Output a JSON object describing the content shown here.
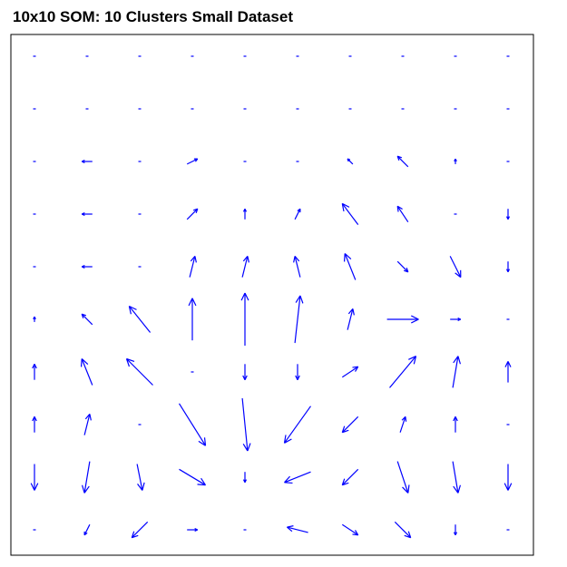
{
  "chart_data": {
    "type": "quiver",
    "title": "10x10 SOM: 10 Clusters Small Dataset",
    "grid_size": [
      10,
      10
    ],
    "xlim": [
      0,
      10
    ],
    "ylim": [
      0,
      10
    ],
    "xlabel": "",
    "ylabel": "",
    "axes_visible": false,
    "arrow_color": "#0000ff",
    "frame_color": "#000000",
    "vectors": [
      [
        [
          0,
          0
        ],
        [
          0,
          0
        ],
        [
          0,
          0
        ],
        [
          0,
          0
        ],
        [
          0,
          0
        ],
        [
          0,
          0
        ],
        [
          0,
          0
        ],
        [
          0,
          0
        ],
        [
          0,
          0
        ],
        [
          0,
          0
        ]
      ],
      [
        [
          0,
          0
        ],
        [
          0,
          0
        ],
        [
          0,
          0
        ],
        [
          0,
          0
        ],
        [
          0,
          0
        ],
        [
          0,
          0
        ],
        [
          0,
          0
        ],
        [
          0,
          0
        ],
        [
          0,
          0
        ],
        [
          0,
          0
        ]
      ],
      [
        [
          0,
          0
        ],
        [
          -0.2,
          0
        ],
        [
          0,
          0
        ],
        [
          0.2,
          0.1
        ],
        [
          0,
          0
        ],
        [
          0,
          0
        ],
        [
          -0.1,
          0.1
        ],
        [
          -0.2,
          0.2
        ],
        [
          0,
          0.1
        ],
        [
          0,
          0
        ]
      ],
      [
        [
          0,
          0
        ],
        [
          -0.2,
          0
        ],
        [
          0,
          0
        ],
        [
          0.2,
          0.2
        ],
        [
          0,
          0.2
        ],
        [
          0.1,
          0.2
        ],
        [
          -0.3,
          0.4
        ],
        [
          -0.2,
          0.3
        ],
        [
          0,
          0
        ],
        [
          0,
          -0.2
        ]
      ],
      [
        [
          0,
          0
        ],
        [
          -0.2,
          0
        ],
        [
          0,
          0
        ],
        [
          0.1,
          0.4
        ],
        [
          0.1,
          0.4
        ],
        [
          -0.1,
          0.4
        ],
        [
          -0.2,
          0.5
        ],
        [
          0.2,
          -0.2
        ],
        [
          0.2,
          -0.4
        ],
        [
          0,
          -0.2
        ]
      ],
      [
        [
          0,
          0.1
        ],
        [
          -0.2,
          0.2
        ],
        [
          -0.4,
          0.5
        ],
        [
          0,
          0.8
        ],
        [
          0,
          1.0
        ],
        [
          0.1,
          0.9
        ],
        [
          0.1,
          0.4
        ],
        [
          0.6,
          0
        ],
        [
          0.2,
          0
        ],
        [
          0,
          0
        ]
      ],
      [
        [
          0,
          0.3
        ],
        [
          -0.2,
          0.5
        ],
        [
          -0.5,
          0.5
        ],
        [
          0,
          0
        ],
        [
          0,
          -0.3
        ],
        [
          0,
          -0.3
        ],
        [
          0.3,
          0.2
        ],
        [
          0.5,
          0.6
        ],
        [
          0.1,
          0.6
        ],
        [
          0,
          0.4
        ]
      ],
      [
        [
          0,
          0.3
        ],
        [
          0.1,
          0.4
        ],
        [
          0,
          0
        ],
        [
          0.5,
          -0.8
        ],
        [
          0.1,
          -1.0
        ],
        [
          -0.5,
          -0.7
        ],
        [
          -0.3,
          -0.3
        ],
        [
          0.1,
          0.3
        ],
        [
          0,
          0.3
        ],
        [
          0,
          0
        ]
      ],
      [
        [
          0,
          -0.5
        ],
        [
          -0.1,
          -0.6
        ],
        [
          0.1,
          -0.5
        ],
        [
          0.5,
          -0.3
        ],
        [
          0,
          -0.2
        ],
        [
          -0.5,
          -0.2
        ],
        [
          -0.3,
          -0.3
        ],
        [
          0.2,
          -0.6
        ],
        [
          0.1,
          -0.6
        ],
        [
          0,
          -0.5
        ]
      ],
      [
        [
          0,
          0
        ],
        [
          -0.1,
          -0.2
        ],
        [
          -0.3,
          -0.3
        ],
        [
          0.2,
          0
        ],
        [
          0,
          0
        ],
        [
          -0.4,
          0.1
        ],
        [
          0.3,
          -0.2
        ],
        [
          0.3,
          -0.3
        ],
        [
          0,
          -0.2
        ],
        [
          0,
          0
        ]
      ]
    ]
  }
}
